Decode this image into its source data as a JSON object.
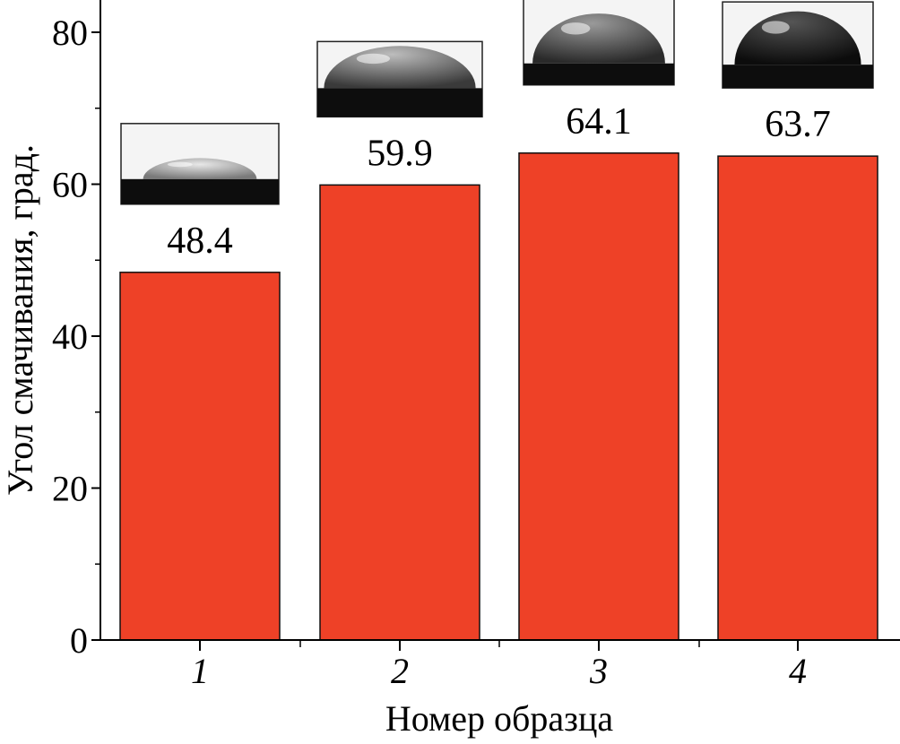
{
  "chart_data": {
    "type": "bar",
    "title": "",
    "xlabel": "Номер образца",
    "ylabel": "Угол смачивания, град.",
    "categories": [
      "1",
      "2",
      "3",
      "4"
    ],
    "values": [
      48.4,
      59.9,
      64.1,
      63.7
    ],
    "value_labels": [
      "48.4",
      "59.9",
      "64.1",
      "63.7"
    ],
    "ylim": [
      0,
      84
    ],
    "yticks": [
      0,
      20,
      40,
      60,
      80
    ],
    "ytick_labels": [
      "0",
      "20",
      "40",
      "60",
      "80"
    ],
    "bar_color": "#ee4127",
    "grid": false,
    "insets": [
      "droplet-photo",
      "droplet-photo",
      "droplet-photo",
      "droplet-photo"
    ]
  }
}
